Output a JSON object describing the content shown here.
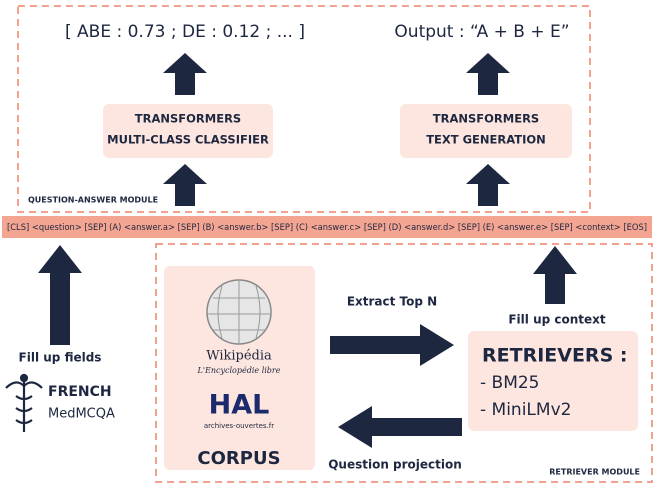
{
  "question_answer_module": {
    "label": "QUESTION-ANSWER MODULE",
    "score_output": "[ ABE : 0.73 ; DE : 0.12 ; ... ]",
    "text_output": "Output : “A + B + E”",
    "classifier": [
      "TRANSFORMERS",
      "MULTI-CLASS CLASSIFIER"
    ],
    "generator": [
      "TRANSFORMERS",
      "TEXT GENERATION"
    ]
  },
  "input_template": "[CLS] <question> [SEP] (A) <answer.a> [SEP] (B) <answer.b> [SEP] (C) <answer.c> [SEP] (D) <answer.d> [SEP] (E) <answer.e> [SEP] <context> [EOS]",
  "dataset": {
    "arrow_label": "Fill up fields",
    "name": "FRENCH",
    "subname": "MedMCQA"
  },
  "retriever_module": {
    "label": "RETRIEVER MODULE",
    "corpus": {
      "wikipedia": "Wikipédia",
      "wikipedia_tagline": "L'Encyclopédie libre",
      "hal": "HAL",
      "hal_tagline": "archives-ouvertes.fr",
      "title": "CORPUS"
    },
    "extract_label": "Extract Top N",
    "projection_label": "Question projection",
    "context_label": "Fill up context",
    "retrievers": {
      "title": "RETRIEVERS :",
      "items": [
        "- BM25",
        "- MiniLMv2"
      ]
    }
  }
}
